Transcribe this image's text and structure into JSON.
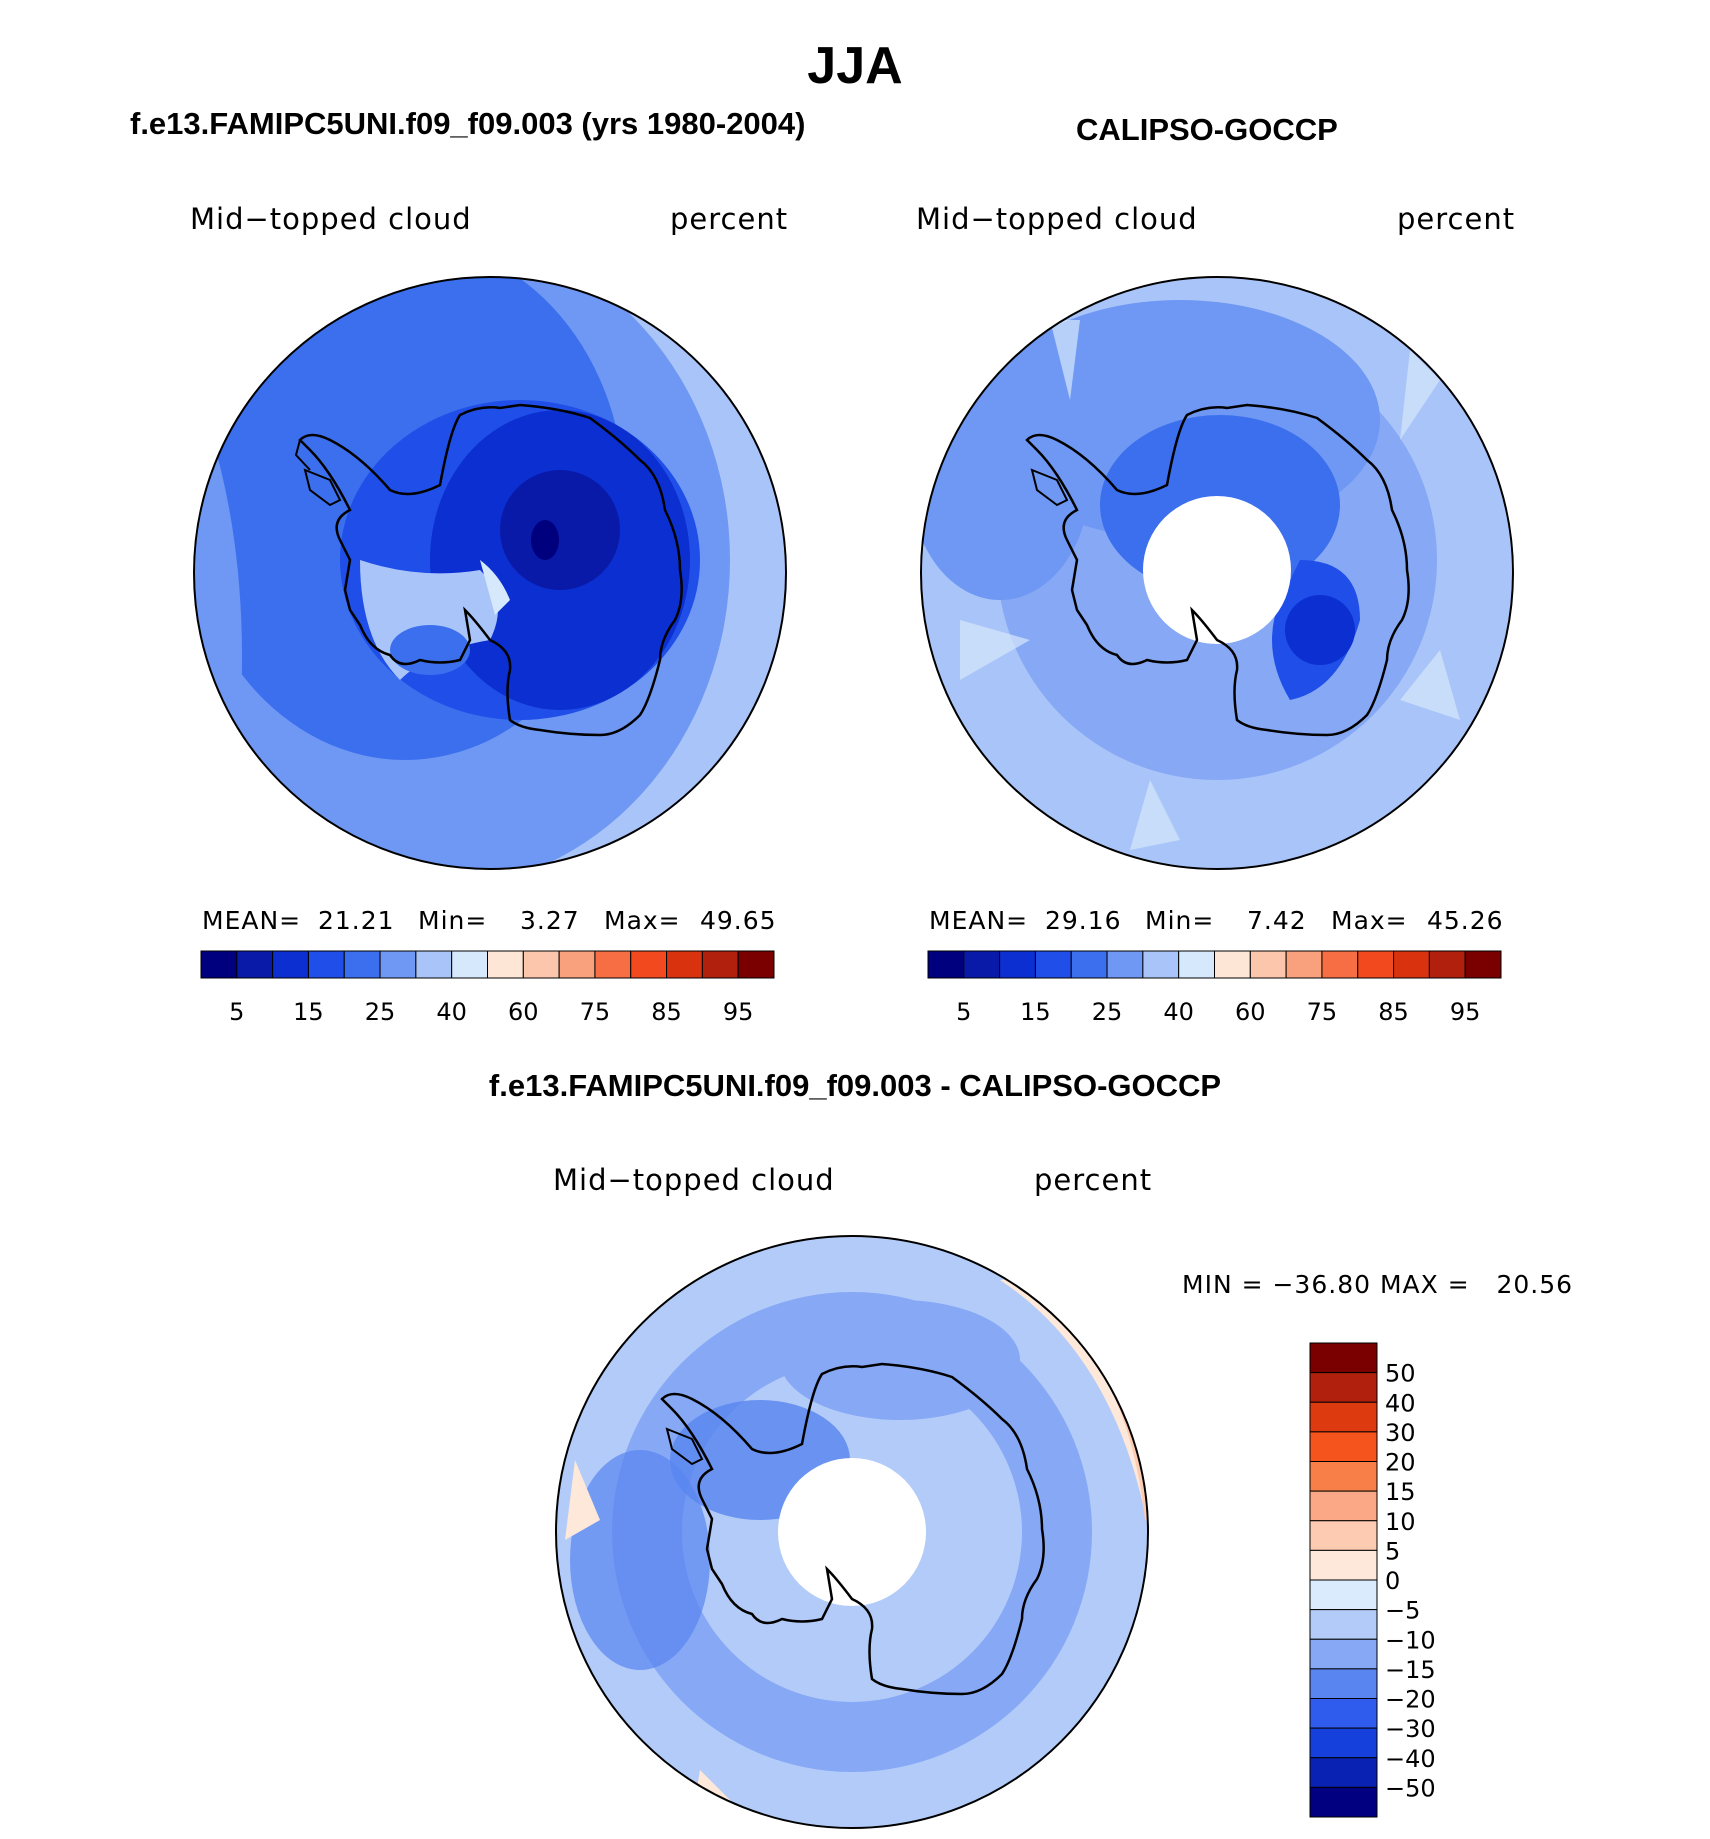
{
  "title": "JJA",
  "panels": [
    {
      "id": "model",
      "title": "f.e13.FAMIPC5UNI.f09_f09.003 (yrs 1980-2004)",
      "variable": "Mid−topped cloud",
      "units": "percent",
      "stats": {
        "mean_label": "MEAN=",
        "mean": "21.21",
        "min_label": "Min=",
        "min": "3.27",
        "max_label": "Max=",
        "max": "49.65"
      }
    },
    {
      "id": "obs",
      "title": "CALIPSO-GOCCP",
      "variable": "Mid−topped cloud",
      "units": "percent",
      "stats": {
        "mean_label": "MEAN=",
        "mean": "29.16",
        "min_label": "Min=",
        "min": "7.42",
        "max_label": "Max=",
        "max": "45.26"
      }
    }
  ],
  "colorbar": {
    "colors": [
      "#00007f",
      "#0a1aa8",
      "#0c2fd2",
      "#1f4fe8",
      "#3c6fee",
      "#6e98f3",
      "#a9c4f8",
      "#d6e8fb",
      "#fde6d6",
      "#fcc6ac",
      "#f9a07c",
      "#f76e45",
      "#f24a1e",
      "#d9320f",
      "#b0200c",
      "#7a0000"
    ],
    "labels": [
      "5",
      "15",
      "25",
      "40",
      "60",
      "75",
      "85",
      "95"
    ]
  },
  "difference": {
    "title": "f.e13.FAMIPC5UNI.f09_f09.003 - CALIPSO-GOCCP",
    "variable": "Mid−topped cloud",
    "units": "percent",
    "minmax_text": "MIN = −36.80 MAX =   20.56",
    "colorbar": {
      "colors": [
        "#7a0000",
        "#b0200c",
        "#de3a10",
        "#f5541d",
        "#f88048",
        "#fba886",
        "#fdcbb1",
        "#fde8da",
        "#d9ebfc",
        "#b2cbf9",
        "#86a8f5",
        "#5885ef",
        "#2f5cec",
        "#1540dc",
        "#0a22b4",
        "#000080"
      ],
      "labels": [
        "50",
        "40",
        "30",
        "20",
        "15",
        "10",
        "5",
        "0",
        "−5",
        "−10",
        "−15",
        "−20",
        "−30",
        "−40",
        "−50"
      ]
    }
  }
}
